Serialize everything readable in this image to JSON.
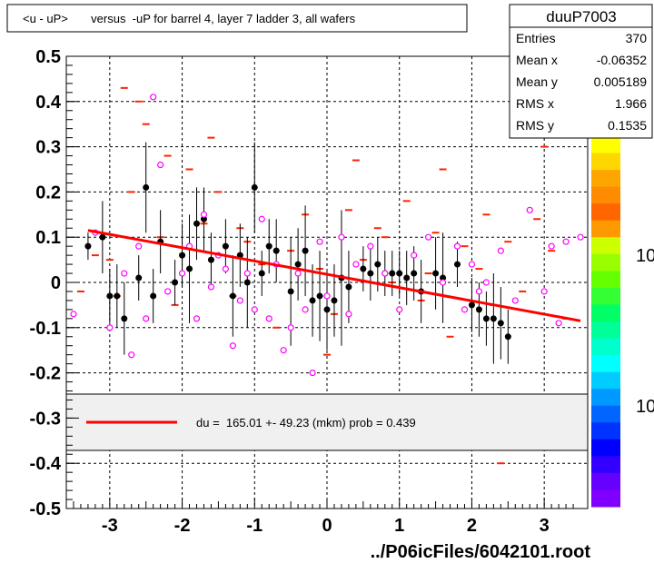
{
  "title": "<u - uP>       versus  -uP for barrel 4, layer 7 ladder 3, all wafers",
  "footer": "../P06icFiles/6042101.root",
  "stats": {
    "name": "duuP7003",
    "rows": [
      {
        "label": "Entries",
        "value": "370"
      },
      {
        "label": "Mean x",
        "value": "-0.06352"
      },
      {
        "label": "Mean y",
        "value": "0.005189"
      },
      {
        "label": "RMS x",
        "value": "1.966"
      },
      {
        "label": "RMS y",
        "value": "0.1535"
      }
    ]
  },
  "legend": {
    "text": "du =  165.01 +- 49.23 (mkm) prob = 0.439",
    "line_color": "#ff0000"
  },
  "palette": {
    "labels": [
      "10",
      "10"
    ],
    "colors": [
      "#ffff00",
      "#ffd700",
      "#ffa500",
      "#ff8c00",
      "#ff6600",
      "#ff9900",
      "#ccff00",
      "#99ff00",
      "#66ff00",
      "#33ff33",
      "#00ff66",
      "#00ff99",
      "#00ffcc",
      "#00ffff",
      "#00ccff",
      "#0099ff",
      "#0066ff",
      "#0033ff",
      "#0000ff",
      "#3300ff",
      "#6600ff",
      "#8000ff"
    ]
  },
  "chart_data": {
    "type": "scatter",
    "title": "<u - uP>       versus  -uP for barrel 4, layer 7 ladder 3, all wafers",
    "xlim": [
      -3.6,
      3.6
    ],
    "ylim": [
      -0.5,
      0.5
    ],
    "x_ticks": [
      -3,
      -2,
      -1,
      0,
      1,
      2,
      3
    ],
    "x_tick_labels": [
      "-3",
      "-2",
      "-1",
      "0",
      "1",
      "2",
      "3"
    ],
    "y_ticks": [
      -0.5,
      -0.4,
      -0.3,
      -0.2,
      -0.1,
      0,
      0.1,
      0.2,
      0.3,
      0.4,
      0.5
    ],
    "y_tick_labels": [
      "-0.5",
      "-0.4",
      "-0.3",
      "-0.2",
      "-0.1",
      "0",
      "0.1",
      "0.2",
      "0.3",
      "0.4",
      "0.5"
    ],
    "grid": true,
    "fit_line": {
      "x": [
        -3.3,
        3.5
      ],
      "y": [
        0.115,
        -0.085
      ],
      "color": "#ff0000"
    },
    "histogram_cells": [
      [
        -3.2,
        0.06
      ],
      [
        -2.9,
        -0.03
      ],
      [
        -2.7,
        0.2
      ],
      [
        -2.5,
        0.35
      ],
      [
        -2.3,
        0.1
      ],
      [
        -2.1,
        -0.05
      ],
      [
        -1.9,
        0.25
      ],
      [
        -1.7,
        0.13
      ],
      [
        -1.5,
        0.2
      ],
      [
        -1.3,
        -0.03
      ],
      [
        -1.1,
        0.09
      ],
      [
        -0.9,
        0.04
      ],
      [
        -0.7,
        -0.1
      ],
      [
        -0.5,
        0.07
      ],
      [
        -0.3,
        0.15
      ],
      [
        -0.1,
        0.03
      ],
      [
        0.1,
        -0.07
      ],
      [
        0.3,
        0.16
      ],
      [
        0.5,
        0.05
      ],
      [
        0.7,
        0.12
      ],
      [
        0.9,
        0.0
      ],
      [
        1.1,
        0.18
      ],
      [
        1.3,
        -0.04
      ],
      [
        1.5,
        0.11
      ],
      [
        1.7,
        -0.12
      ],
      [
        1.9,
        0.08
      ],
      [
        2.1,
        0.03
      ],
      [
        2.3,
        -0.05
      ],
      [
        2.5,
        0.09
      ],
      [
        2.7,
        -0.02
      ],
      [
        2.9,
        0.14
      ],
      [
        3.1,
        0.07
      ],
      [
        3.3,
        -0.08
      ],
      [
        -3.4,
        -0.02
      ],
      [
        -2.6,
        0.4
      ],
      [
        -1.8,
        -0.25
      ],
      [
        -0.6,
        -0.3
      ],
      [
        0.4,
        0.27
      ],
      [
        1.6,
        0.25
      ],
      [
        2.4,
        -0.4
      ],
      [
        3.0,
        0.3
      ],
      [
        -2.2,
        0.28
      ],
      [
        -1.2,
        0.12
      ],
      [
        0.0,
        -0.16
      ],
      [
        0.8,
        0.1
      ],
      [
        1.4,
        0.02
      ],
      [
        2.2,
        0.15
      ],
      [
        -2.8,
        0.43
      ],
      [
        -3.0,
        0.05
      ],
      [
        -1.6,
        0.32
      ]
    ],
    "series": [
      {
        "marker": "filled-circle",
        "color": "#000000",
        "x": [
          -3.3,
          -3.1,
          -3.0,
          -2.9,
          -2.8,
          -2.6,
          -2.5,
          -2.4,
          -2.3,
          -2.1,
          -2.0,
          -1.9,
          -1.8,
          -1.7,
          -1.6,
          -1.4,
          -1.3,
          -1.2,
          -1.1,
          -1.0,
          -0.9,
          -0.8,
          -0.7,
          -0.5,
          -0.4,
          -0.3,
          -0.2,
          -0.1,
          0.0,
          0.1,
          0.2,
          0.3,
          0.5,
          0.6,
          0.7,
          0.8,
          0.9,
          1.0,
          1.1,
          1.2,
          1.3,
          1.5,
          1.6,
          1.8,
          2.0,
          2.1,
          2.2,
          2.3,
          2.4,
          2.5
        ],
        "y": [
          0.08,
          0.1,
          -0.03,
          -0.03,
          -0.08,
          0.01,
          0.21,
          -0.03,
          0.09,
          0.0,
          0.06,
          0.03,
          0.13,
          0.14,
          0.05,
          0.08,
          -0.03,
          0.06,
          0.0,
          0.21,
          0.02,
          0.08,
          0.07,
          -0.02,
          0.04,
          0.07,
          -0.04,
          -0.03,
          -0.06,
          -0.04,
          0.01,
          -0.01,
          0.03,
          0.02,
          0.04,
          0.02,
          0.02,
          0.02,
          0.01,
          0.02,
          -0.02,
          0.02,
          0.01,
          0.04,
          -0.05,
          -0.06,
          -0.08,
          -0.08,
          -0.09,
          -0.12
        ],
        "err": [
          0.03,
          0.08,
          0.06,
          0.07,
          0.08,
          0.05,
          0.1,
          0.06,
          0.07,
          0.05,
          0.07,
          0.12,
          0.08,
          0.07,
          0.06,
          0.06,
          0.09,
          0.07,
          0.1,
          0.1,
          0.05,
          0.06,
          0.07,
          0.12,
          0.08,
          0.1,
          0.08,
          0.1,
          0.09,
          0.08,
          0.15,
          0.08,
          0.05,
          0.06,
          0.06,
          0.05,
          0.05,
          0.05,
          0.06,
          0.06,
          0.07,
          0.08,
          0.1,
          0.05,
          0.06,
          0.06,
          0.06,
          0.1,
          0.08,
          0.06
        ]
      },
      {
        "marker": "open-circle",
        "color": "#ff00ff",
        "x": [
          -3.5,
          -3.2,
          -3.0,
          -2.8,
          -2.7,
          -2.6,
          -2.5,
          -2.4,
          -2.3,
          -2.2,
          -2.0,
          -1.9,
          -1.8,
          -1.7,
          -1.6,
          -1.5,
          -1.4,
          -1.3,
          -1.2,
          -1.1,
          -1.0,
          -0.9,
          -0.8,
          -0.7,
          -0.6,
          -0.5,
          -0.4,
          -0.3,
          -0.2,
          -0.1,
          0.0,
          0.2,
          0.3,
          0.4,
          0.6,
          0.8,
          1.0,
          1.2,
          1.4,
          1.6,
          1.8,
          1.9,
          2.0,
          2.1,
          2.2,
          2.4,
          2.6,
          2.8,
          3.0,
          3.1,
          3.2,
          3.3,
          3.5
        ],
        "y": [
          -0.07,
          0.11,
          -0.1,
          0.02,
          -0.16,
          0.08,
          -0.08,
          0.41,
          0.26,
          -0.02,
          0.02,
          0.08,
          -0.08,
          0.15,
          -0.01,
          0.06,
          0.03,
          -0.14,
          -0.04,
          0.02,
          -0.06,
          0.14,
          -0.08,
          0.04,
          -0.15,
          -0.1,
          0.02,
          -0.06,
          -0.2,
          0.09,
          -0.03,
          0.1,
          -0.07,
          0.04,
          0.08,
          0.02,
          -0.06,
          0.06,
          0.1,
          0.0,
          0.08,
          -0.06,
          0.04,
          -0.02,
          0.0,
          0.07,
          -0.04,
          0.16,
          -0.02,
          0.08,
          -0.09,
          0.09,
          0.1
        ],
        "err": [
          0.0,
          0.0,
          0.0,
          0.0,
          0.0,
          0.0,
          0.0,
          0.0,
          0.0,
          0.0,
          0.0,
          0.0,
          0.0,
          0.0,
          0.0,
          0.0,
          0.0,
          0.0,
          0.0,
          0.0,
          0.0,
          0.0,
          0.0,
          0.0,
          0.0,
          0.0,
          0.0,
          0.0,
          0.0,
          0.0,
          0.0,
          0.0,
          0.0,
          0.0,
          0.0,
          0.0,
          0.0,
          0.0,
          0.0,
          0.0,
          0.0,
          0.0,
          0.0,
          0.0,
          0.0,
          0.0,
          0.0,
          0.0,
          0.0,
          0.0,
          0.0,
          0.0,
          0.0
        ]
      }
    ]
  }
}
